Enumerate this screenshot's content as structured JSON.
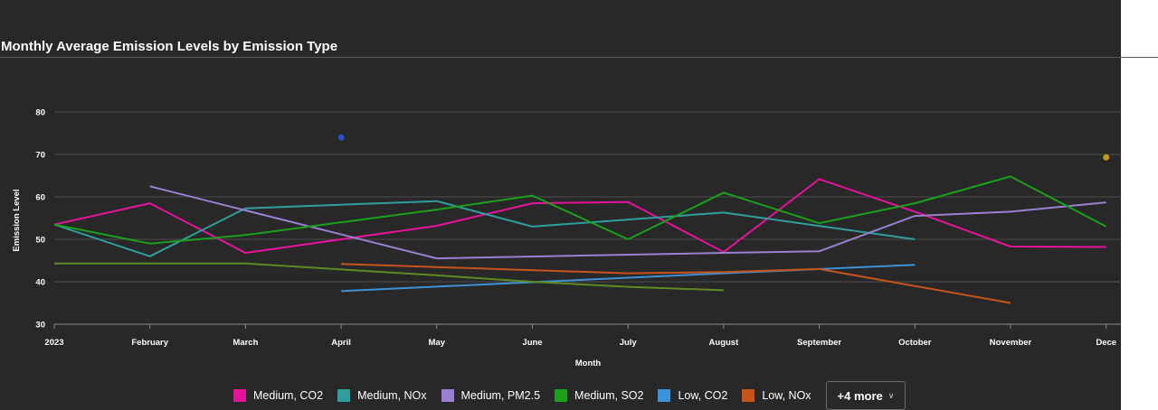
{
  "chart_data": {
    "type": "line",
    "title": "Monthly Average Emission Levels by Emission Type",
    "xlabel": "Month",
    "ylabel": "Emission Level",
    "categories": [
      "2023",
      "February",
      "March",
      "April",
      "May",
      "June",
      "July",
      "August",
      "September",
      "October",
      "November",
      "December"
    ],
    "x_tick_labels": [
      "2023",
      "February",
      "March",
      "April",
      "May",
      "June",
      "July",
      "August",
      "September",
      "October",
      "November",
      "Dece"
    ],
    "ylim": [
      30,
      80
    ],
    "yticks": [
      30,
      40,
      50,
      60,
      70,
      80
    ],
    "grid": true,
    "legend_position": "bottom",
    "series": [
      {
        "name": "Medium, CO2",
        "color": "#e6139a",
        "values": [
          53.5,
          58.5,
          46.8,
          null,
          53.2,
          58.5,
          58.8,
          47.0,
          64.2,
          56.5,
          48.3,
          48.2
        ]
      },
      {
        "name": "Medium, NOx",
        "color": "#2e9e9e",
        "values": [
          53.5,
          46.0,
          57.3,
          null,
          59.0,
          53.0,
          null,
          56.3,
          null,
          50.0,
          null,
          null
        ]
      },
      {
        "name": "Medium, PM2.5",
        "color": "#9b7fd1",
        "values": [
          null,
          62.5,
          56.8,
          null,
          45.5,
          null,
          null,
          46.8,
          47.2,
          55.5,
          56.5,
          58.7
        ]
      },
      {
        "name": "Medium, SO2",
        "color": "#1aa01a",
        "values": [
          53.5,
          49.0,
          51.0,
          null,
          57.0,
          60.3,
          50.0,
          61.0,
          53.8,
          58.5,
          64.8,
          53.0
        ]
      },
      {
        "name": "Low, CO2",
        "color": "#3a92d8",
        "values": [
          null,
          null,
          null,
          37.8,
          null,
          null,
          null,
          42.0,
          null,
          44.0,
          null,
          null
        ]
      },
      {
        "name": "Low, NOx",
        "color": "#c8541a",
        "values": [
          null,
          null,
          null,
          44.2,
          null,
          null,
          42.0,
          42.3,
          43.0,
          null,
          35.0,
          null
        ]
      },
      {
        "name": "",
        "color": "#5e8a22",
        "values": [
          44.3,
          44.3,
          44.3,
          null,
          41.5,
          40.0,
          38.8,
          38.0,
          null,
          null,
          null,
          null
        ]
      },
      {
        "name": "",
        "color": "#2d4fc4",
        "values": [
          null,
          null,
          null,
          74.0,
          null,
          null,
          null,
          null,
          null,
          null,
          null,
          null
        ]
      },
      {
        "name": "",
        "color": "#c49a12",
        "values": [
          null,
          null,
          null,
          null,
          null,
          null,
          null,
          null,
          null,
          null,
          null,
          69.3
        ]
      }
    ]
  },
  "legend": {
    "items": [
      {
        "label": "Medium, CO2",
        "color": "#e6139a"
      },
      {
        "label": "Medium, NOx",
        "color": "#2e9e9e"
      },
      {
        "label": "Medium, PM2.5",
        "color": "#9b7fd1"
      },
      {
        "label": "Medium, SO2",
        "color": "#1aa01a"
      },
      {
        "label": "Low, CO2",
        "color": "#3a92d8"
      },
      {
        "label": "Low, NOx",
        "color": "#c8541a"
      }
    ],
    "more_label": "+4 more"
  }
}
